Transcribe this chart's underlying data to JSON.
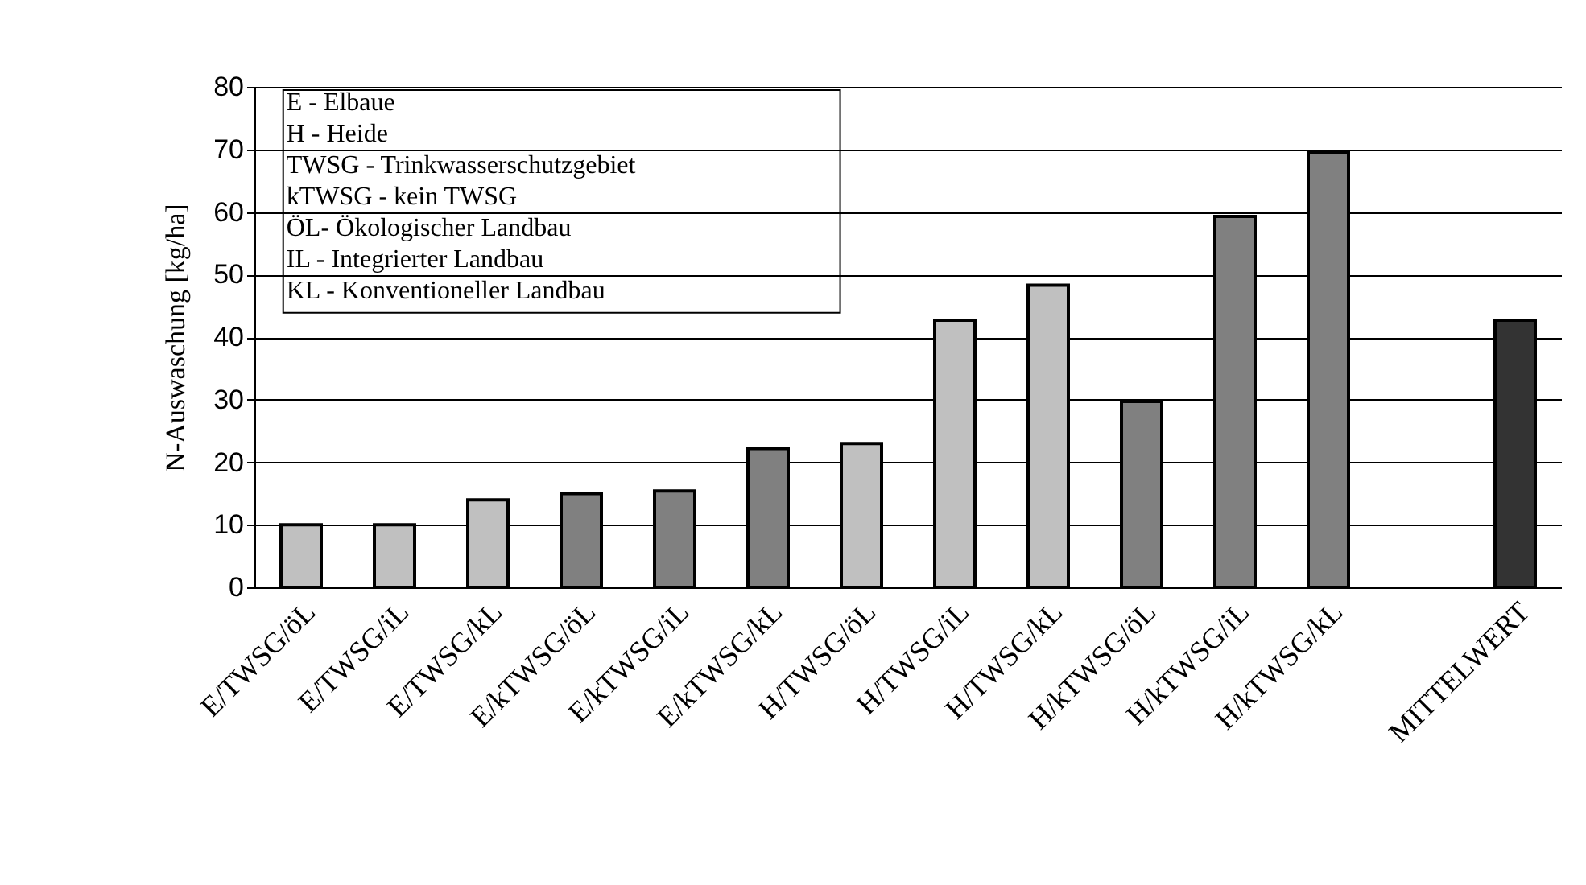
{
  "chart_data": {
    "type": "bar",
    "categories": [
      "E/TWSG/öL",
      "E/TWSG/iL",
      "E/TWSG/kL",
      "E/kTWSG/öL",
      "E/kTWSG/iL",
      "E/kTWSG/kL",
      "H/TWSG/öL",
      "H/TWSG/iL",
      "H/TWSG/kL",
      "H/kTWSG/öL",
      "H/kTWSG/iL",
      "H/kTWSG/kL",
      null,
      "MITTELWERT"
    ],
    "values": [
      10,
      10,
      14,
      15,
      15.4,
      22.2,
      23,
      42.7,
      48.3,
      29.7,
      59.3,
      69.5,
      null,
      42.7
    ],
    "colors": [
      "#c0c0c0",
      "#c0c0c0",
      "#c0c0c0",
      "#808080",
      "#808080",
      "#808080",
      "#c0c0c0",
      "#c0c0c0",
      "#c0c0c0",
      "#808080",
      "#808080",
      "#808080",
      "#808080",
      "#333333"
    ],
    "ylabel": "N-Auswaschung  [kg/ha]",
    "ylim": [
      0,
      80
    ],
    "yticks": [
      0,
      10,
      20,
      30,
      40,
      50,
      60,
      70,
      80
    ],
    "grid": "y",
    "annotations": [
      "E - Elbaue",
      "H - Heide",
      "TWSG - Trinkwasserschutzgebiet",
      "kTWSG - kein TWSG",
      "ÖL- Ökologischer Landbau",
      "IL - Integrierter Landbau",
      "KL - Konventioneller Landbau"
    ]
  }
}
